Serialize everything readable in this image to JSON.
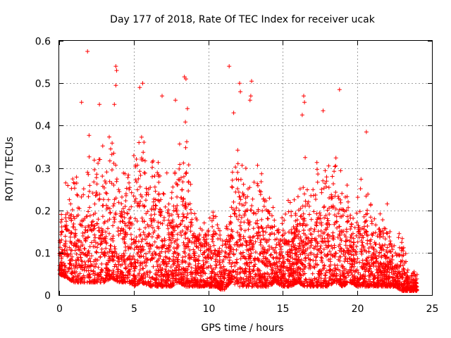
{
  "chart_data": {
    "type": "scatter",
    "title": "Day 177 of 2018, Rate Of TEC Index for receiver ucak",
    "xlabel": "GPS time / hours",
    "ylabel": "ROTI / TECUs",
    "xlim": [
      0,
      25
    ],
    "ylim": [
      0,
      0.6
    ],
    "x_ticks": [
      "0",
      "5",
      "10",
      "15",
      "20",
      "25"
    ],
    "y_ticks": [
      "0",
      "0.1",
      "0.2",
      "0.3",
      "0.4",
      "0.5",
      "0.6"
    ],
    "grid": true,
    "marker": "+",
    "color": "#ff0000",
    "coverage": "dense per-epoch points from 0 to 24 hours",
    "envelope": [
      [
        0.0,
        0.05,
        0.2
      ],
      [
        0.5,
        0.04,
        0.33
      ],
      [
        1.0,
        0.03,
        0.34
      ],
      [
        1.5,
        0.03,
        0.28
      ],
      [
        2.0,
        0.03,
        0.4
      ],
      [
        2.5,
        0.03,
        0.42
      ],
      [
        3.0,
        0.03,
        0.39
      ],
      [
        3.5,
        0.04,
        0.5
      ],
      [
        4.0,
        0.03,
        0.33
      ],
      [
        4.5,
        0.03,
        0.32
      ],
      [
        5.0,
        0.02,
        0.36
      ],
      [
        5.5,
        0.03,
        0.47
      ],
      [
        6.0,
        0.02,
        0.34
      ],
      [
        6.5,
        0.02,
        0.37
      ],
      [
        7.0,
        0.02,
        0.3
      ],
      [
        7.5,
        0.02,
        0.3
      ],
      [
        8.0,
        0.03,
        0.37
      ],
      [
        8.5,
        0.02,
        0.46
      ],
      [
        9.0,
        0.02,
        0.25
      ],
      [
        9.5,
        0.02,
        0.22
      ],
      [
        10.0,
        0.02,
        0.21
      ],
      [
        10.5,
        0.02,
        0.23
      ],
      [
        11.0,
        0.01,
        0.2
      ],
      [
        11.5,
        0.03,
        0.32
      ],
      [
        12.0,
        0.02,
        0.42
      ],
      [
        12.5,
        0.02,
        0.34
      ],
      [
        13.0,
        0.02,
        0.3
      ],
      [
        13.5,
        0.02,
        0.33
      ],
      [
        14.0,
        0.02,
        0.26
      ],
      [
        14.5,
        0.03,
        0.25
      ],
      [
        15.0,
        0.02,
        0.2
      ],
      [
        15.5,
        0.02,
        0.24
      ],
      [
        16.0,
        0.03,
        0.25
      ],
      [
        16.5,
        0.02,
        0.33
      ],
      [
        17.0,
        0.02,
        0.28
      ],
      [
        17.5,
        0.02,
        0.37
      ],
      [
        18.0,
        0.02,
        0.33
      ],
      [
        18.5,
        0.03,
        0.38
      ],
      [
        19.0,
        0.02,
        0.3
      ],
      [
        19.5,
        0.03,
        0.26
      ],
      [
        20.0,
        0.02,
        0.26
      ],
      [
        20.5,
        0.02,
        0.3
      ],
      [
        21.0,
        0.02,
        0.22
      ],
      [
        21.5,
        0.02,
        0.2
      ],
      [
        22.0,
        0.02,
        0.21
      ],
      [
        22.5,
        0.02,
        0.13
      ],
      [
        23.0,
        0.01,
        0.15
      ],
      [
        23.5,
        0.01,
        0.06
      ],
      [
        24.0,
        0.01,
        0.06
      ]
    ],
    "outliers": [
      [
        1.9,
        0.575
      ],
      [
        3.8,
        0.54
      ],
      [
        3.85,
        0.53
      ],
      [
        3.8,
        0.495
      ],
      [
        5.4,
        0.49
      ],
      [
        5.6,
        0.5
      ],
      [
        8.4,
        0.515
      ],
      [
        8.5,
        0.51
      ],
      [
        11.4,
        0.54
      ],
      [
        12.1,
        0.5
      ],
      [
        12.15,
        0.48
      ],
      [
        12.9,
        0.505
      ],
      [
        12.85,
        0.47
      ],
      [
        12.8,
        0.46
      ],
      [
        16.4,
        0.47
      ],
      [
        16.45,
        0.455
      ],
      [
        16.3,
        0.425
      ],
      [
        17.7,
        0.435
      ],
      [
        18.8,
        0.485
      ],
      [
        20.6,
        0.385
      ],
      [
        1.5,
        0.455
      ],
      [
        3.7,
        0.45
      ],
      [
        6.9,
        0.47
      ],
      [
        7.8,
        0.46
      ],
      [
        8.6,
        0.44
      ],
      [
        2.7,
        0.45
      ],
      [
        11.7,
        0.43
      ],
      [
        22.0,
        0.215
      ],
      [
        22.8,
        0.145
      ]
    ]
  }
}
